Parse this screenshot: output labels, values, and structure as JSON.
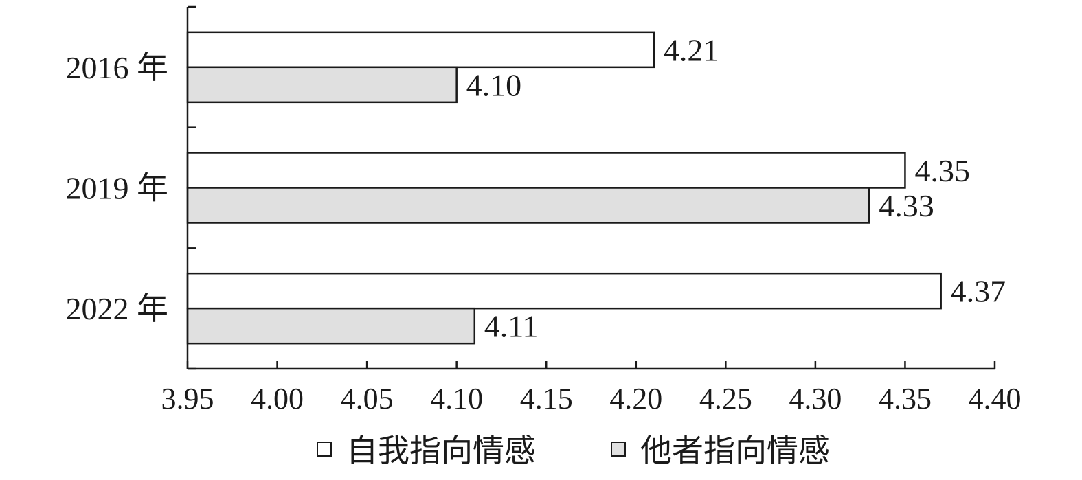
{
  "chart_data": {
    "type": "bar",
    "orientation": "horizontal",
    "categories": [
      "2016 年",
      "2019 年",
      "2022 年"
    ],
    "series": [
      {
        "name": "自我指向情感",
        "values": [
          4.21,
          4.35,
          4.37
        ],
        "color": "#ffffff"
      },
      {
        "name": "他者指向情感",
        "values": [
          4.1,
          4.33,
          4.11
        ],
        "color": "#e0e0e0"
      }
    ],
    "data_labels": [
      [
        "4.21",
        "4.35",
        "4.37"
      ],
      [
        "4.10",
        "4.33",
        "4.11"
      ]
    ],
    "xlim": [
      3.95,
      4.4
    ],
    "xticks": [
      "3.95",
      "4.00",
      "4.05",
      "4.10",
      "4.15",
      "4.20",
      "4.25",
      "4.30",
      "4.35",
      "4.40"
    ],
    "title": "",
    "xlabel": "",
    "ylabel": "",
    "grid": false,
    "legend_position": "bottom",
    "bar_outline_color": "#1a1a1a"
  }
}
